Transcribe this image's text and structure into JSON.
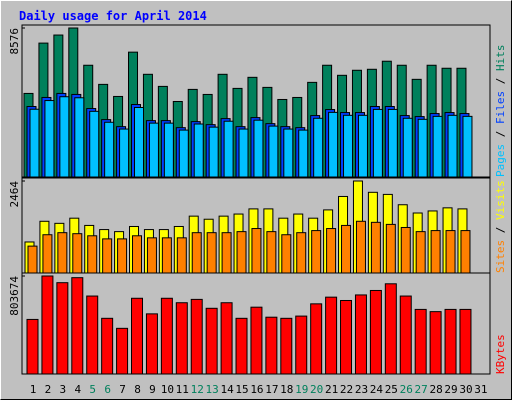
{
  "title": "Daily usage for April 2014",
  "categories": [
    "1",
    "2",
    "3",
    "4",
    "5",
    "6",
    "7",
    "8",
    "9",
    "10",
    "11",
    "12",
    "13",
    "14",
    "15",
    "16",
    "17",
    "18",
    "19",
    "20",
    "21",
    "22",
    "23",
    "24",
    "25",
    "26",
    "27",
    "28",
    "29",
    "30",
    "31"
  ],
  "category_colors": [
    "#000000",
    "#000000",
    "#000000",
    "#000000",
    "#00805c",
    "#00805c",
    "#000000",
    "#000000",
    "#000000",
    "#000000",
    "#000000",
    "#00805c",
    "#00805c",
    "#000000",
    "#000000",
    "#000000",
    "#000000",
    "#000000",
    "#00805c",
    "#00805c",
    "#000000",
    "#000000",
    "#000000",
    "#000000",
    "#000000",
    "#00805c",
    "#00805c",
    "#000000",
    "#000000",
    "#000000",
    "#000000"
  ],
  "legend_separator": " / ",
  "chart_data": [
    {
      "type": "bar",
      "ylim": [
        0,
        8576
      ],
      "yticks": [
        8576
      ],
      "series": [
        {
          "name": "Hits",
          "color": "#00805c",
          "values": [
            4810,
            7707,
            8171,
            8576,
            6432,
            5331,
            4636,
            7186,
            5911,
            5215,
            4346,
            5042,
            4752,
            5911,
            5100,
            5737,
            5158,
            4462,
            4578,
            5447,
            6432,
            5853,
            6143,
            6200,
            6664,
            6432,
            5621,
            6432,
            6259,
            6259,
            null
          ]
        },
        {
          "name": "Files",
          "color": "#0040ff",
          "values": [
            4057,
            4578,
            4810,
            4752,
            3941,
            3303,
            2898,
            4172,
            3245,
            3245,
            2840,
            3187,
            3013,
            3361,
            2898,
            3419,
            3071,
            2898,
            2840,
            3535,
            3883,
            3709,
            3709,
            4057,
            4057,
            3535,
            3477,
            3651,
            3709,
            3651,
            null
          ]
        },
        {
          "name": "Pages",
          "color": "#00c0ff",
          "values": [
            3900,
            4400,
            4620,
            4560,
            3780,
            3150,
            2760,
            4000,
            3100,
            3100,
            2700,
            3050,
            2870,
            3210,
            2760,
            3270,
            2930,
            2760,
            2700,
            3380,
            3720,
            3550,
            3550,
            3890,
            3890,
            3380,
            3320,
            3490,
            3550,
            3490,
            null
          ]
        }
      ]
    },
    {
      "type": "bar",
      "ylim": [
        0,
        2464
      ],
      "yticks": [
        2464
      ],
      "series": [
        {
          "name": "Visits",
          "color": "#ffff00",
          "values": [
            831,
            1385,
            1330,
            1468,
            1274,
            1163,
            1108,
            1246,
            1163,
            1163,
            1246,
            1523,
            1440,
            1523,
            1579,
            1717,
            1717,
            1468,
            1579,
            1468,
            1690,
            2050,
            2464,
            2161,
            2105,
            1828,
            1607,
            1662,
            1745,
            1717,
            null
          ]
        },
        {
          "name": "Sites",
          "color": "#ff8000",
          "values": [
            720,
            1025,
            1080,
            1053,
            997,
            914,
            914,
            997,
            942,
            942,
            942,
            1080,
            1080,
            1080,
            1108,
            1191,
            1108,
            1025,
            1080,
            1136,
            1191,
            1274,
            1385,
            1357,
            1302,
            1219,
            1108,
            1136,
            1136,
            1136,
            null
          ]
        }
      ]
    },
    {
      "type": "bar",
      "ylim": [
        0,
        803674
      ],
      "yticks": [
        803674
      ],
      "series": [
        {
          "name": "KBytes",
          "color": "#ff0000",
          "values": [
            447500,
            803674,
            748900,
            790000,
            639300,
            456650,
            374450,
            621000,
            493200,
            621000,
            584500,
            611900,
            538800,
            584500,
            456650,
            548000,
            465800,
            456650,
            474900,
            575400,
            630200,
            602800,
            648400,
            685000,
            739800,
            639300,
            529700,
            511400,
            529700,
            529700,
            null
          ]
        }
      ]
    }
  ]
}
